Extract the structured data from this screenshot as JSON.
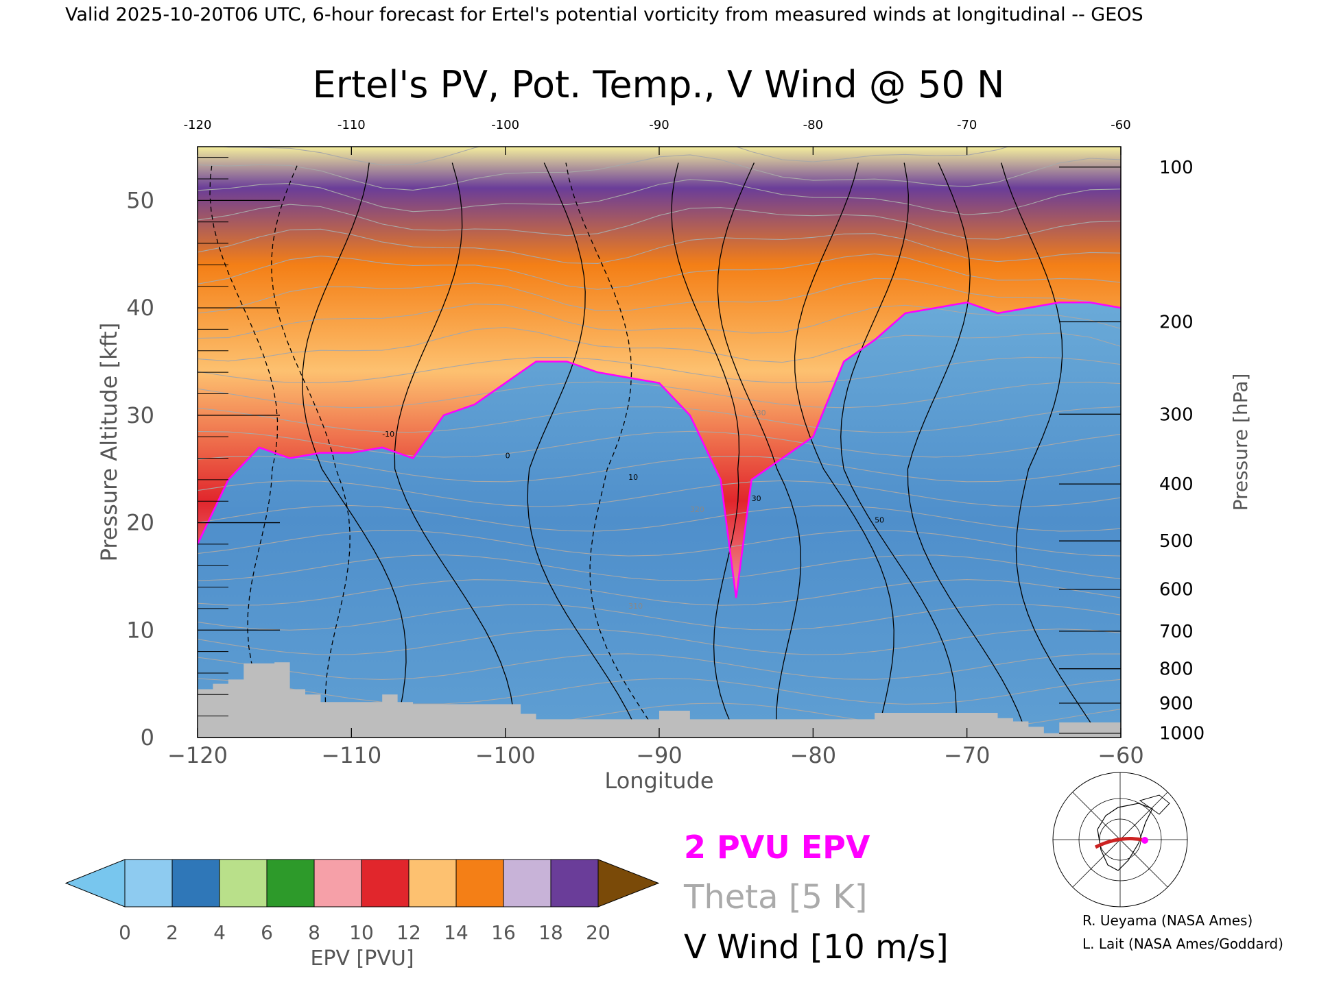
{
  "header": {
    "valid_line": "Valid 2025-10-20T06 UTC, 6-hour forecast for Ertel's potential vorticity from measured winds at longitudinal -- GEOS"
  },
  "chart_data": {
    "type": "heatmap",
    "title": "Ertel's PV, Pot. Temp., V Wind @ 50 N",
    "xlabel": "Longitude",
    "ylabel": "Pressure Altitude [kft]",
    "y2label": "Pressure [hPa]",
    "xlim": [
      -120,
      -60
    ],
    "ylim": [
      0,
      55
    ],
    "x_ticks": [
      -120,
      -110,
      -100,
      -90,
      -80,
      -70,
      -60
    ],
    "x_tick_labels": [
      "−120",
      "−110",
      "−100",
      "−90",
      "−80",
      "−70",
      "−60"
    ],
    "top_tick_labels": [
      "-120",
      "-110",
      "-100",
      "-90",
      "-80",
      "-70",
      "-60"
    ],
    "y_ticks": [
      0,
      10,
      20,
      30,
      40,
      50
    ],
    "y_tick_labels": [
      "0",
      "10",
      "20",
      "30",
      "40",
      "50"
    ],
    "pressure_ticks": [
      {
        "hPa": 100,
        "label": "100",
        "kft": 53.1
      },
      {
        "hPa": 200,
        "label": "200",
        "kft": 38.7
      },
      {
        "hPa": 300,
        "label": "300",
        "kft": 30.1
      },
      {
        "hPa": 400,
        "label": "400",
        "kft": 23.6
      },
      {
        "hPa": 500,
        "label": "500",
        "kft": 18.3
      },
      {
        "hPa": 600,
        "label": "600",
        "kft": 13.8
      },
      {
        "hPa": 700,
        "label": "700",
        "kft": 9.9
      },
      {
        "hPa": 800,
        "label": "800",
        "kft": 6.4
      },
      {
        "hPa": 900,
        "label": "900",
        "kft": 3.2
      },
      {
        "hPa": 1000,
        "label": "1000",
        "kft": 0.4
      }
    ],
    "colorbar": {
      "label": "EPV [PVU]",
      "ticks": [
        "0",
        "2",
        "4",
        "6",
        "8",
        "10",
        "12",
        "14",
        "16",
        "18",
        "20"
      ],
      "colors": [
        "#8ecbf0",
        "#2f77b8",
        "#b9e08a",
        "#2d9a2a",
        "#f6a0a8",
        "#e1262c",
        "#fdc170",
        "#f47f16",
        "#c8b3d8",
        "#6a3d99",
        "#f4ee9c"
      ],
      "under_color": "#78c6ee",
      "over_color": "#7a4a08"
    },
    "legend": [
      {
        "label": "2 PVU EPV",
        "color": "#ff00ff"
      },
      {
        "label": "Theta [5 K]",
        "color": "#aaaaaa"
      },
      {
        "label": "V Wind [10 m/s]",
        "color": "#000000"
      }
    ],
    "tropopause_2pvu_kft": {
      "lon": [
        -120,
        -118,
        -116,
        -114,
        -112,
        -110,
        -108,
        -106,
        -104,
        -102,
        -100,
        -98,
        -96,
        -94,
        -92,
        -90,
        -88,
        -86,
        -85,
        -84,
        -82,
        -80,
        -78,
        -76,
        -74,
        -72,
        -70,
        -68,
        -66,
        -64,
        -62,
        -60
      ],
      "alt": [
        18,
        24,
        27,
        26,
        26.5,
        26.5,
        27,
        26,
        30,
        31,
        33,
        35,
        35,
        34,
        33.5,
        33,
        30,
        24,
        13,
        24,
        26,
        28,
        35,
        37,
        39.5,
        40,
        40.5,
        39.5,
        40,
        40.5,
        40.5,
        40
      ]
    },
    "wind_labels": [
      "-10",
      "0",
      "10",
      "30",
      "50"
    ],
    "theta_labels": [
      "310",
      "320",
      "330"
    ],
    "terrain_kft": {
      "lon": [
        -120,
        -119,
        -118,
        -117,
        -115,
        -114,
        -113,
        -112,
        -109,
        -108,
        -107,
        -106,
        -99,
        -98,
        -91,
        -90,
        -89,
        -88,
        -77,
        -76,
        -69,
        -68,
        -67,
        -66,
        -65,
        -64,
        -60
      ],
      "alt": [
        4.5,
        5,
        5.4,
        6.9,
        7,
        4.5,
        4,
        3.3,
        3.3,
        4,
        3.3,
        3.1,
        2.2,
        1.7,
        1.7,
        2.5,
        2.5,
        1.7,
        1.7,
        2.3,
        2.3,
        1.8,
        1.5,
        1.0,
        0.4,
        1.4,
        1.5
      ]
    },
    "grid": false
  },
  "credits": {
    "line1": "R. Ueyama (NASA Ames)",
    "line2": "L. Lait (NASA Ames/Goddard)"
  },
  "inset_map": {
    "highlight_color": "#cc2222",
    "marker_color": "#ff00ff"
  }
}
